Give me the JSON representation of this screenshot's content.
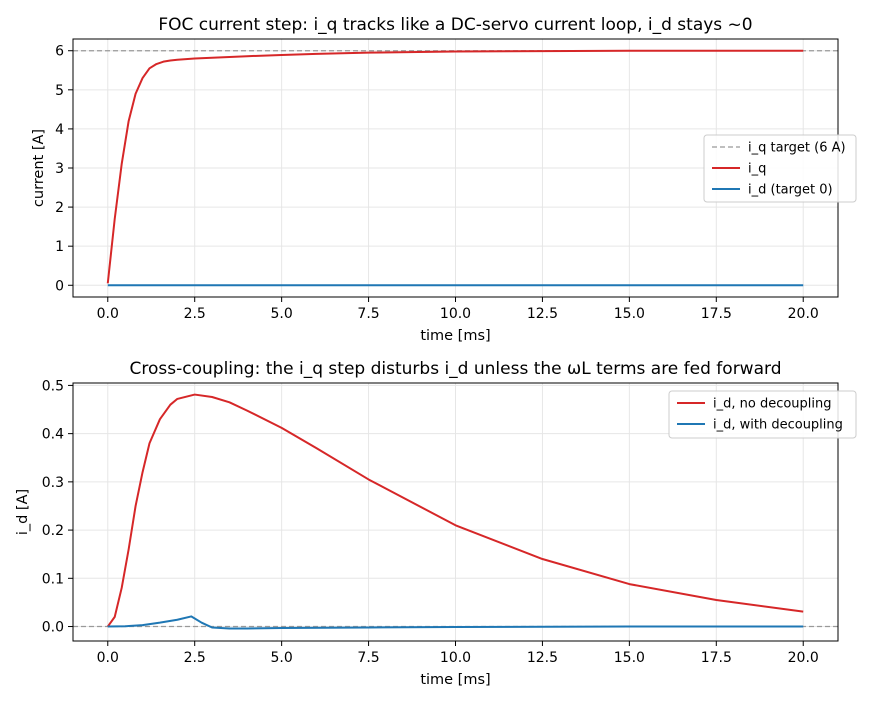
{
  "colors": {
    "red": "#d62728",
    "blue": "#1f77b4",
    "target": "#999999",
    "grid": "#e6e6e6",
    "axis": "#000000"
  },
  "chart_data": [
    {
      "type": "line",
      "title": "FOC current step: i_q tracks like a DC-servo current loop, i_d stays ~0",
      "xlabel": "time [ms]",
      "ylabel": "current [A]",
      "xlim": [
        -1.0,
        21.0
      ],
      "ylim": [
        -0.3,
        6.3
      ],
      "xticks": [
        0.0,
        2.5,
        5.0,
        7.5,
        10.0,
        12.5,
        15.0,
        17.5,
        20.0
      ],
      "xtick_labels": [
        "0.0",
        "2.5",
        "5.0",
        "7.5",
        "10.0",
        "12.5",
        "15.0",
        "17.5",
        "20.0"
      ],
      "yticks": [
        0,
        1,
        2,
        3,
        4,
        5,
        6
      ],
      "ytick_labels": [
        "0",
        "1",
        "2",
        "3",
        "4",
        "5",
        "6"
      ],
      "grid": true,
      "legend": "center-right",
      "series": [
        {
          "name": "i_q target (6 A)",
          "color": "#999999",
          "dashed": true,
          "full_width": true,
          "x": [
            -1.0,
            21.0
          ],
          "y": [
            6.0,
            6.0
          ]
        },
        {
          "name": "i_q",
          "color": "#d62728",
          "x": [
            0,
            0.2,
            0.4,
            0.6,
            0.8,
            1.0,
            1.2,
            1.4,
            1.6,
            1.8,
            2.0,
            2.5,
            3.0,
            4.0,
            5.0,
            6.0,
            7.5,
            10.0,
            12.5,
            15.0,
            17.5,
            20.0
          ],
          "y": [
            0.05,
            1.7,
            3.1,
            4.2,
            4.9,
            5.3,
            5.55,
            5.66,
            5.72,
            5.75,
            5.77,
            5.8,
            5.82,
            5.86,
            5.89,
            5.92,
            5.95,
            5.98,
            5.99,
            6.0,
            6.0,
            6.0
          ]
        },
        {
          "name": "i_d (target 0)",
          "color": "#1f77b4",
          "x": [
            0,
            5,
            10,
            15,
            20
          ],
          "y": [
            0,
            0,
            0,
            0,
            0
          ]
        }
      ]
    },
    {
      "type": "line",
      "title": "Cross-coupling: the i_q step disturbs i_d unless the ωL terms are fed forward",
      "xlabel": "time [ms]",
      "ylabel": "i_d [A]",
      "xlim": [
        -1.0,
        21.0
      ],
      "ylim": [
        -0.03,
        0.505
      ],
      "xticks": [
        0.0,
        2.5,
        5.0,
        7.5,
        10.0,
        12.5,
        15.0,
        17.5,
        20.0
      ],
      "xtick_labels": [
        "0.0",
        "2.5",
        "5.0",
        "7.5",
        "10.0",
        "12.5",
        "15.0",
        "17.5",
        "20.0"
      ],
      "yticks": [
        0.0,
        0.1,
        0.2,
        0.3,
        0.4,
        0.5
      ],
      "ytick_labels": [
        "0.0",
        "0.1",
        "0.2",
        "0.3",
        "0.4",
        "0.5"
      ],
      "grid": true,
      "legend": "top-right",
      "series": [
        {
          "name": "",
          "color": "#999999",
          "dashed": true,
          "full_width": true,
          "x": [
            -1.0,
            21.0
          ],
          "y": [
            0.0,
            0.0
          ]
        },
        {
          "name": "i_d, no decoupling",
          "color": "#d62728",
          "x": [
            0,
            0.2,
            0.4,
            0.6,
            0.8,
            1.0,
            1.2,
            1.5,
            1.8,
            2.0,
            2.5,
            3.0,
            3.5,
            4.0,
            5.0,
            6.0,
            7.5,
            10.0,
            12.5,
            15.0,
            17.5,
            20.0
          ],
          "y": [
            0,
            0.02,
            0.08,
            0.16,
            0.25,
            0.32,
            0.38,
            0.43,
            0.46,
            0.472,
            0.481,
            0.476,
            0.465,
            0.448,
            0.412,
            0.37,
            0.305,
            0.21,
            0.14,
            0.088,
            0.055,
            0.031
          ]
        },
        {
          "name": "i_d, with decoupling",
          "color": "#1f77b4",
          "x": [
            0,
            0.5,
            1.0,
            1.5,
            2.0,
            2.4,
            2.7,
            3.0,
            3.5,
            4.0,
            5.0,
            7.5,
            10.0,
            15.0,
            20.0
          ],
          "y": [
            0,
            0.0005,
            0.003,
            0.008,
            0.014,
            0.021,
            0.008,
            -0.002,
            -0.004,
            -0.004,
            -0.003,
            -0.002,
            -0.001,
            0,
            0
          ]
        }
      ]
    }
  ]
}
